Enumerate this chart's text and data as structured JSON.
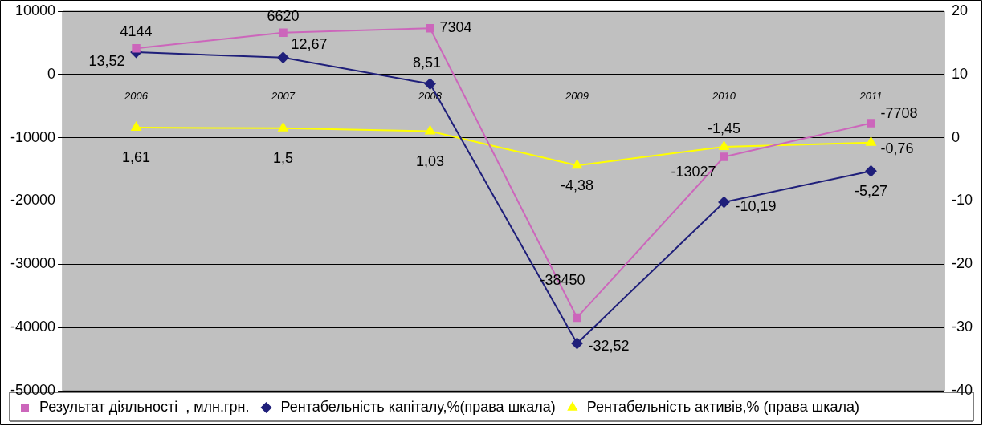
{
  "chart_data": {
    "type": "line",
    "categories": [
      "2006",
      "2007",
      "2008",
      "2009",
      "2010",
      "2011"
    ],
    "ylim": [
      -50000,
      10000
    ],
    "yticks": [
      -50000,
      -40000,
      -30000,
      -20000,
      -10000,
      0,
      10000
    ],
    "y2lim": [
      -40,
      20
    ],
    "y2ticks": [
      -40,
      -30,
      -20,
      -10,
      0,
      10,
      20
    ],
    "grid": "y",
    "legend": "bottom",
    "series": [
      {
        "name": "Результат діяльності  , млн.грн.",
        "color": "#cc66bb",
        "marker": "square",
        "values": [
          4144,
          6620,
          7304,
          -38450,
          -13027,
          -7708
        ],
        "value_labels": [
          "4144",
          "6620",
          "7304",
          "-38450",
          "-13027",
          "-7708"
        ]
      },
      {
        "name": "Рентабельність капіталу,%(права шкала)",
        "color": "#1f1f7a",
        "marker": "diamond",
        "axis": "y2",
        "values": [
          13.52,
          12.67,
          8.51,
          -32.52,
          -10.19,
          -5.27
        ],
        "value_labels": [
          "13,52",
          "12,67",
          "8,51",
          "-32,52",
          "-10,19",
          "-5,27"
        ]
      },
      {
        "name": "Рентабельність активів,% (права шкала)",
        "color": "#ffff00",
        "marker": "triangle",
        "axis": "y2",
        "values": [
          1.61,
          1.5,
          1.03,
          -4.38,
          -1.45,
          -0.76
        ],
        "value_labels": [
          "1,61",
          "1,5",
          "1,03",
          "-4,38",
          "-1,45",
          "-0,76"
        ]
      }
    ]
  }
}
